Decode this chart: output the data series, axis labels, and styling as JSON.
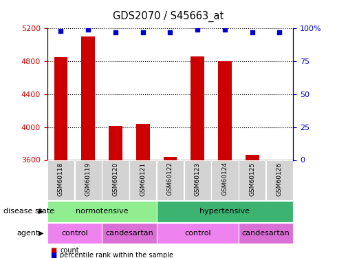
{
  "title": "GDS2070 / S45663_at",
  "samples": [
    "GSM60118",
    "GSM60119",
    "GSM60120",
    "GSM60121",
    "GSM60122",
    "GSM60123",
    "GSM60124",
    "GSM60125",
    "GSM60126"
  ],
  "counts": [
    4850,
    5100,
    4010,
    4040,
    3640,
    4860,
    4800,
    3660,
    3600
  ],
  "percentiles": [
    98,
    99,
    97,
    97,
    97,
    99,
    99,
    97,
    97
  ],
  "ylim_left": [
    3600,
    5200
  ],
  "ylim_right": [
    0,
    100
  ],
  "yticks_left": [
    3600,
    4000,
    4400,
    4800,
    5200
  ],
  "yticks_right": [
    0,
    25,
    50,
    75,
    100
  ],
  "ytick_right_labels": [
    "0",
    "25",
    "50",
    "75",
    "100%"
  ],
  "bar_color": "#cc0000",
  "percentile_color": "#0000cc",
  "disease_state_groups": [
    {
      "label": "normotensive",
      "start": 0,
      "end": 4,
      "color": "#90ee90"
    },
    {
      "label": "hypertensive",
      "start": 4,
      "end": 9,
      "color": "#3cb371"
    }
  ],
  "agent_groups": [
    {
      "label": "control",
      "start": 0,
      "end": 2,
      "color": "#ee82ee"
    },
    {
      "label": "candesartan",
      "start": 2,
      "end": 4,
      "color": "#da70d6"
    },
    {
      "label": "control",
      "start": 4,
      "end": 7,
      "color": "#ee82ee"
    },
    {
      "label": "candesartan",
      "start": 7,
      "end": 9,
      "color": "#da70d6"
    }
  ],
  "legend_count_color": "#cc0000",
  "legend_percentile_color": "#0000cc",
  "tick_label_color_left": "#cc0000",
  "tick_label_color_right": "#0000cc"
}
